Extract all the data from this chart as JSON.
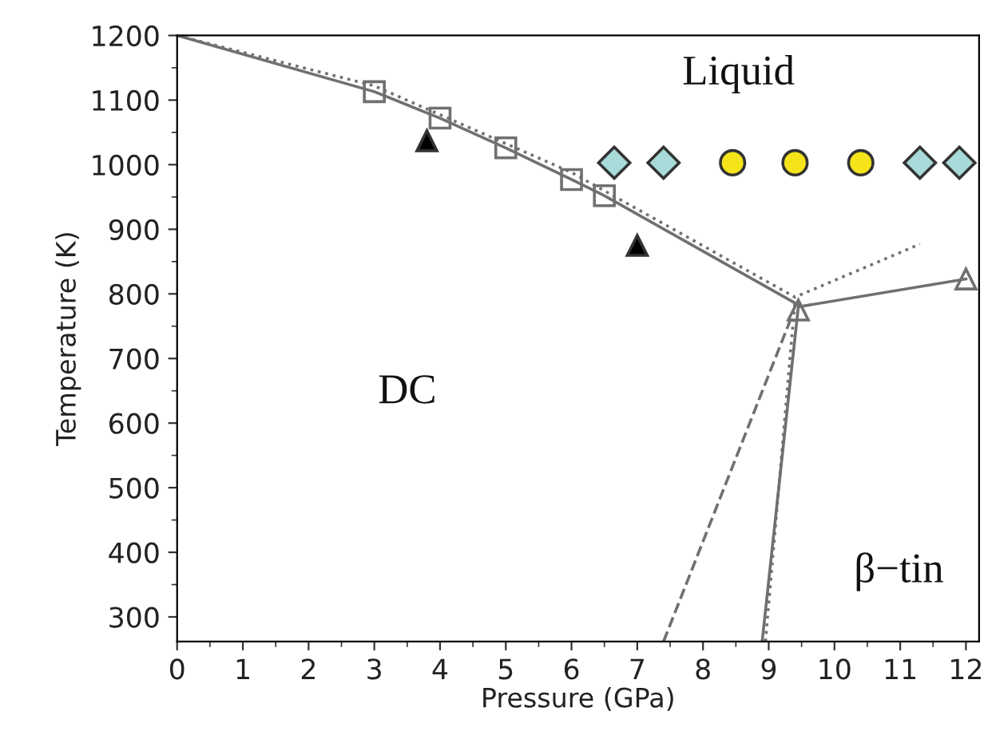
{
  "chart_data": {
    "type": "line",
    "xlabel": "Pressure (GPa)",
    "ylabel": "Temperature (K)",
    "xlim": [
      0,
      12.2
    ],
    "ylim": [
      262,
      1200
    ],
    "xticks": [
      0,
      1,
      2,
      3,
      4,
      5,
      6,
      7,
      8,
      9,
      10,
      11,
      12
    ],
    "yticks": [
      300,
      400,
      500,
      600,
      700,
      800,
      900,
      1000,
      1100,
      1200
    ],
    "series": [
      {
        "color": "#707070",
        "line_style": "solid",
        "x": [
          0,
          3,
          4,
          5,
          6,
          6.5,
          9.45
        ],
        "values": [
          1200,
          1113,
          1072,
          1026,
          977,
          952,
          783
        ]
      },
      {
        "color": "#707070",
        "line_style": "dotted",
        "x": [
          0,
          3,
          6,
          9.4,
          11.3
        ],
        "values": [
          1200,
          1122,
          988,
          795,
          877
        ]
      },
      {
        "color": "#707070",
        "line_style": "solid",
        "x": [
          8.9,
          9.45,
          12
        ],
        "values": [
          262,
          780,
          823
        ]
      },
      {
        "color": "#707070",
        "line_style": "dotted",
        "x": [
          8.95,
          9.4
        ],
        "values": [
          262,
          790
        ]
      },
      {
        "color": "#707070",
        "line_style": "dashed",
        "x": [
          7.4,
          9.35
        ],
        "values": [
          262,
          765
        ]
      },
      {
        "type": "scatter",
        "color": "#707070",
        "marker": "square",
        "x": [
          3,
          4,
          5,
          6,
          6.5
        ],
        "values": [
          1113,
          1072,
          1026,
          977,
          952
        ]
      },
      {
        "type": "scatter",
        "color": "#707070",
        "marker": "triangle",
        "x": [
          9.45,
          12
        ],
        "values": [
          775,
          823
        ]
      },
      {
        "type": "scatter",
        "color": "#000000",
        "marker": "triangle",
        "x": [
          3.8,
          7
        ],
        "values": [
          1037,
          875
        ]
      },
      {
        "type": "scatter",
        "color": "#a8dada",
        "marker": "diamond",
        "x": [
          6.65,
          7.4,
          11.3,
          11.9
        ],
        "values": [
          1003,
          1003,
          1003,
          1003
        ]
      },
      {
        "type": "scatter",
        "color": "#f5e41a",
        "marker": "circle",
        "x": [
          8.45,
          9.4,
          10.4
        ],
        "values": [
          1003,
          1003,
          1003
        ]
      }
    ],
    "annotations": [
      "Liquid",
      "DC",
      "β−tin"
    ]
  }
}
